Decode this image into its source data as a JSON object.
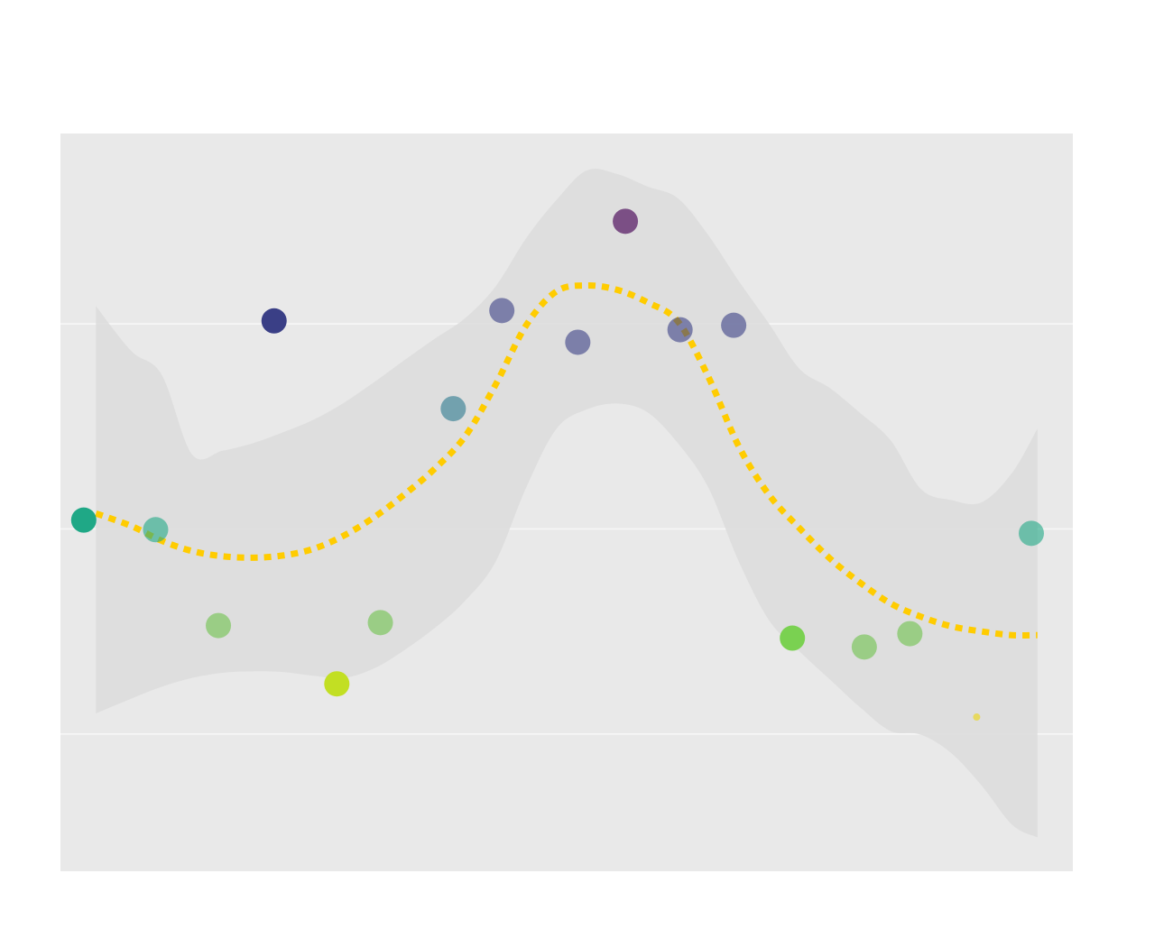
{
  "chart_data": {
    "type": "scatter",
    "title": "",
    "xlabel": "",
    "ylabel": "",
    "xlim": [
      0,
      1
    ],
    "ylim": [
      0,
      1
    ],
    "grid": true,
    "legend": "none",
    "background": "#e9e9e9",
    "gridline_values": [
      0.186,
      0.464,
      0.742
    ],
    "points": [
      {
        "x": 0.023,
        "y": 0.476,
        "size": 14,
        "color": "#1fa886",
        "opacity": 1.0
      },
      {
        "x": 0.094,
        "y": 0.463,
        "size": 14,
        "color": "#1fa886",
        "opacity": 0.6
      },
      {
        "x": 0.156,
        "y": 0.333,
        "size": 14,
        "color": "#6cc24a",
        "opacity": 0.6
      },
      {
        "x": 0.211,
        "y": 0.746,
        "size": 14,
        "color": "#3a3f86",
        "opacity": 1.0
      },
      {
        "x": 0.273,
        "y": 0.254,
        "size": 14,
        "color": "#c2df23",
        "opacity": 1.0
      },
      {
        "x": 0.316,
        "y": 0.337,
        "size": 14,
        "color": "#6cc24a",
        "opacity": 0.6
      },
      {
        "x": 0.388,
        "y": 0.627,
        "size": 14,
        "color": "#2a788e",
        "opacity": 0.6
      },
      {
        "x": 0.436,
        "y": 0.76,
        "size": 14,
        "color": "#3a3f86",
        "opacity": 0.6
      },
      {
        "x": 0.511,
        "y": 0.717,
        "size": 14,
        "color": "#3a3f86",
        "opacity": 0.6
      },
      {
        "x": 0.558,
        "y": 0.881,
        "size": 14,
        "color": "#7b4f85",
        "opacity": 1.0
      },
      {
        "x": 0.612,
        "y": 0.734,
        "size": 14,
        "color": "#3a3f86",
        "opacity": 0.6
      },
      {
        "x": 0.665,
        "y": 0.74,
        "size": 14,
        "color": "#3a3f86",
        "opacity": 0.6
      },
      {
        "x": 0.723,
        "y": 0.316,
        "size": 14,
        "color": "#7ad151",
        "opacity": 1.0
      },
      {
        "x": 0.794,
        "y": 0.304,
        "size": 14,
        "color": "#6cc24a",
        "opacity": 0.6
      },
      {
        "x": 0.839,
        "y": 0.322,
        "size": 14,
        "color": "#6cc24a",
        "opacity": 0.6
      },
      {
        "x": 0.905,
        "y": 0.209,
        "size": 4,
        "color": "#e8d740",
        "opacity": 0.8
      },
      {
        "x": 0.959,
        "y": 0.458,
        "size": 14,
        "color": "#1fa886",
        "opacity": 0.6
      }
    ],
    "smooth": {
      "color": "#ffcc00",
      "style": "dotted",
      "band_color": "#dddddd",
      "x": [
        0.035,
        0.07,
        0.1,
        0.13,
        0.16,
        0.19,
        0.22,
        0.25,
        0.28,
        0.31,
        0.34,
        0.37,
        0.4,
        0.43,
        0.46,
        0.49,
        0.52,
        0.55,
        0.58,
        0.61,
        0.64,
        0.67,
        0.7,
        0.73,
        0.76,
        0.79,
        0.82,
        0.85,
        0.88,
        0.91,
        0.94,
        0.965
      ],
      "y": [
        0.485,
        0.468,
        0.448,
        0.434,
        0.427,
        0.425,
        0.428,
        0.437,
        0.455,
        0.48,
        0.511,
        0.546,
        0.59,
        0.66,
        0.74,
        0.786,
        0.794,
        0.788,
        0.771,
        0.745,
        0.67,
        0.576,
        0.51,
        0.465,
        0.424,
        0.391,
        0.363,
        0.345,
        0.332,
        0.325,
        0.32,
        0.32
      ],
      "upper": [
        0.766,
        0.705,
        0.673,
        0.565,
        0.57,
        0.58,
        0.595,
        0.612,
        0.635,
        0.663,
        0.693,
        0.722,
        0.75,
        0.793,
        0.858,
        0.91,
        0.95,
        0.945,
        0.928,
        0.912,
        0.862,
        0.8,
        0.742,
        0.681,
        0.655,
        0.621,
        0.584,
        0.518,
        0.503,
        0.5,
        0.54,
        0.6
      ],
      "lower": [
        0.214,
        0.234,
        0.25,
        0.262,
        0.269,
        0.271,
        0.27,
        0.265,
        0.262,
        0.275,
        0.3,
        0.33,
        0.367,
        0.42,
        0.52,
        0.6,
        0.626,
        0.634,
        0.622,
        0.58,
        0.52,
        0.42,
        0.34,
        0.298,
        0.26,
        0.222,
        0.19,
        0.185,
        0.16,
        0.116,
        0.063,
        0.046
      ]
    }
  }
}
